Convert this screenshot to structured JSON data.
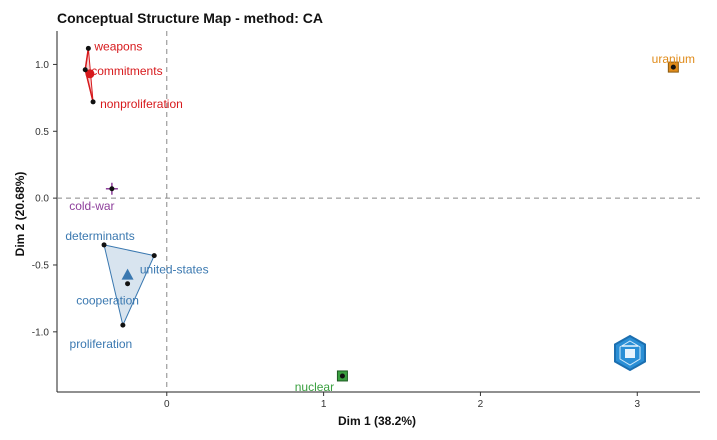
{
  "chart_data": {
    "type": "scatter",
    "title": "Conceptual Structure Map - method: CA",
    "xlabel": "Dim 1 (38.2%)",
    "ylabel": "Dim 2 (20.68%)",
    "xlim": [
      -0.7,
      3.4
    ],
    "ylim": [
      -1.45,
      1.25
    ],
    "xticks": [
      {
        "value": 0,
        "label": "0"
      },
      {
        "value": 1,
        "label": "1"
      },
      {
        "value": 2,
        "label": "2"
      },
      {
        "value": 3,
        "label": "3"
      }
    ],
    "yticks": [
      {
        "value": 1.0,
        "label": "1.0"
      },
      {
        "value": 0.5,
        "label": "0.5"
      },
      {
        "value": 0.0,
        "label": "0.0"
      },
      {
        "value": -0.5,
        "label": "-0.5"
      },
      {
        "value": -1.0,
        "label": "-1.0"
      }
    ],
    "reference_lines": {
      "x": 0,
      "y": 0
    },
    "clusters": [
      {
        "color": "#d7191c",
        "hull": true,
        "points": [
          {
            "label": "weapons",
            "x": -0.5,
            "y": 1.12
          },
          {
            "label": "commitments",
            "x": -0.52,
            "y": 0.96
          },
          {
            "label": "nonproliferation",
            "x": -0.47,
            "y": 0.72
          }
        ],
        "centroid": {
          "x": -0.49,
          "y": 0.93
        }
      },
      {
        "color": "#3a78b0",
        "hull": true,
        "points": [
          {
            "label": "determinants",
            "x": -0.4,
            "y": -0.35
          },
          {
            "label": "united-states",
            "x": -0.08,
            "y": -0.43
          },
          {
            "label": "cooperation",
            "x": -0.25,
            "y": -0.64
          },
          {
            "label": "proliferation",
            "x": -0.28,
            "y": -0.95
          }
        ],
        "centroid": {
          "x": -0.25,
          "y": -0.58
        }
      },
      {
        "color": "#8e3f9c",
        "hull": false,
        "points": [
          {
            "label": "cold-war",
            "x": -0.35,
            "y": 0.07
          }
        ],
        "centroid": {
          "x": -0.35,
          "y": 0.07
        }
      },
      {
        "color": "#3aa040",
        "hull": false,
        "points": [
          {
            "label": "nuclear",
            "x": 1.12,
            "y": -1.33
          }
        ],
        "centroid": {
          "x": 1.12,
          "y": -1.33
        }
      },
      {
        "color": "#e08b1a",
        "hull": false,
        "points": [
          {
            "label": "uranium",
            "x": 3.23,
            "y": 0.98
          }
        ],
        "centroid": {
          "x": 3.23,
          "y": 0.98
        }
      }
    ],
    "grid": false,
    "logo": "hexagon-logo"
  }
}
